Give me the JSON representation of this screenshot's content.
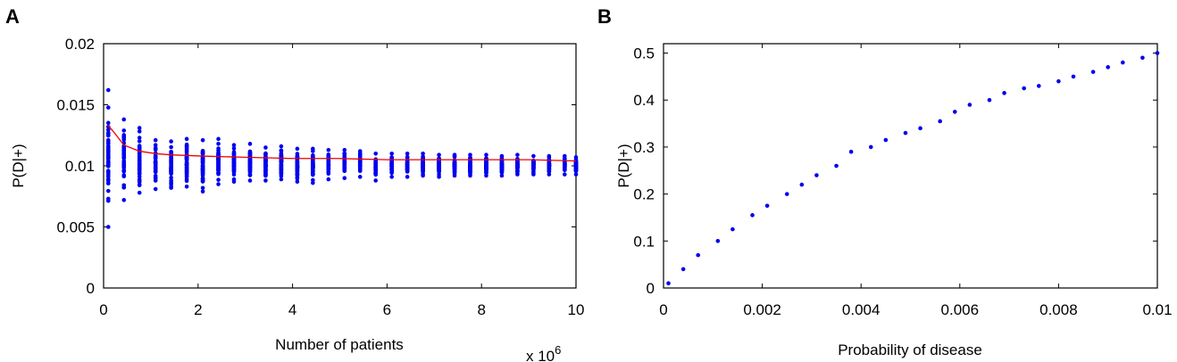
{
  "chart_data": [
    {
      "panel_label": "A",
      "type": "scatter",
      "xlabel": "Number of patients",
      "ylabel": "P(D|+)",
      "x_multiplier_label": "x 10",
      "x_multiplier_exponent": "6",
      "xlim": [
        0,
        10
      ],
      "ylim": [
        0,
        0.02
      ],
      "xticks": [
        0,
        2,
        4,
        6,
        8,
        10
      ],
      "xtick_labels": [
        "0",
        "2",
        "4",
        "6",
        "8",
        "10"
      ],
      "yticks": [
        0,
        0.005,
        0.01,
        0.015,
        0.02
      ],
      "ytick_labels": [
        "0",
        "0.005",
        "0.01",
        "0.015",
        "0.02"
      ],
      "grid": false,
      "point_color": "#0000ee",
      "line_color": "#ee0000",
      "clusters": [
        {
          "x": 0.1,
          "ymin": 0.005,
          "ymax": 0.0162
        },
        {
          "x": 0.43,
          "ymin": 0.0072,
          "ymax": 0.0138
        },
        {
          "x": 0.76,
          "ymin": 0.0078,
          "ymax": 0.0131
        },
        {
          "x": 1.1,
          "ymin": 0.0081,
          "ymax": 0.0121
        },
        {
          "x": 1.43,
          "ymin": 0.0082,
          "ymax": 0.012
        },
        {
          "x": 1.76,
          "ymin": 0.0083,
          "ymax": 0.0122
        },
        {
          "x": 2.1,
          "ymin": 0.0079,
          "ymax": 0.0121
        },
        {
          "x": 2.43,
          "ymin": 0.0085,
          "ymax": 0.0122
        },
        {
          "x": 2.76,
          "ymin": 0.0087,
          "ymax": 0.0117
        },
        {
          "x": 3.1,
          "ymin": 0.0088,
          "ymax": 0.0118
        },
        {
          "x": 3.43,
          "ymin": 0.0088,
          "ymax": 0.0115
        },
        {
          "x": 3.76,
          "ymin": 0.0089,
          "ymax": 0.0116
        },
        {
          "x": 4.1,
          "ymin": 0.0087,
          "ymax": 0.0114
        },
        {
          "x": 4.43,
          "ymin": 0.0086,
          "ymax": 0.0114
        },
        {
          "x": 4.76,
          "ymin": 0.0089,
          "ymax": 0.0113
        },
        {
          "x": 5.1,
          "ymin": 0.009,
          "ymax": 0.0113
        },
        {
          "x": 5.43,
          "ymin": 0.0091,
          "ymax": 0.0112
        },
        {
          "x": 5.76,
          "ymin": 0.0088,
          "ymax": 0.011
        },
        {
          "x": 6.1,
          "ymin": 0.0091,
          "ymax": 0.011
        },
        {
          "x": 6.43,
          "ymin": 0.0091,
          "ymax": 0.011
        },
        {
          "x": 6.76,
          "ymin": 0.0092,
          "ymax": 0.011
        },
        {
          "x": 7.1,
          "ymin": 0.0091,
          "ymax": 0.0109
        },
        {
          "x": 7.43,
          "ymin": 0.0092,
          "ymax": 0.0109
        },
        {
          "x": 7.76,
          "ymin": 0.0092,
          "ymax": 0.0109
        },
        {
          "x": 8.1,
          "ymin": 0.0092,
          "ymax": 0.0109
        },
        {
          "x": 8.43,
          "ymin": 0.0092,
          "ymax": 0.0108
        },
        {
          "x": 8.76,
          "ymin": 0.0093,
          "ymax": 0.0109
        },
        {
          "x": 9.1,
          "ymin": 0.0093,
          "ymax": 0.0108
        },
        {
          "x": 9.43,
          "ymin": 0.0093,
          "ymax": 0.0108
        },
        {
          "x": 9.76,
          "ymin": 0.0093,
          "ymax": 0.0108
        },
        {
          "x": 10.0,
          "ymin": 0.0093,
          "ymax": 0.0107
        }
      ],
      "mean_line": {
        "x": [
          0.1,
          0.25,
          0.43,
          0.76,
          1.1,
          1.43,
          2.1,
          3.0,
          4.0,
          5.0,
          6.0,
          7.0,
          8.0,
          9.0,
          10.0
        ],
        "y": [
          0.0133,
          0.0126,
          0.0117,
          0.0112,
          0.011,
          0.0109,
          0.0108,
          0.0107,
          0.0106,
          0.0106,
          0.0105,
          0.0105,
          0.0105,
          0.0105,
          0.0104
        ]
      }
    },
    {
      "panel_label": "B",
      "type": "scatter",
      "xlabel": "Probability of disease",
      "ylabel": "P(D|+)",
      "xlim": [
        0,
        0.01
      ],
      "ylim": [
        0,
        0.52
      ],
      "xticks": [
        0,
        0.002,
        0.004,
        0.006,
        0.008,
        0.01
      ],
      "xtick_labels": [
        "0",
        "0.002",
        "0.004",
        "0.006",
        "0.008",
        "0.01"
      ],
      "yticks": [
        0,
        0.1,
        0.2,
        0.3,
        0.4,
        0.5
      ],
      "ytick_labels": [
        "0",
        "0.1",
        "0.2",
        "0.3",
        "0.4",
        "0.5"
      ],
      "grid": false,
      "point_color": "#0000ee",
      "x": [
        0.0001,
        0.0004,
        0.0007,
        0.0011,
        0.0014,
        0.0018,
        0.0021,
        0.0025,
        0.0028,
        0.0031,
        0.0035,
        0.0038,
        0.0042,
        0.0045,
        0.0049,
        0.0052,
        0.0056,
        0.0059,
        0.0062,
        0.0066,
        0.0069,
        0.0073,
        0.0076,
        0.008,
        0.0083,
        0.0087,
        0.009,
        0.0093,
        0.0097,
        0.01
      ],
      "y": [
        0.01,
        0.04,
        0.07,
        0.1,
        0.125,
        0.155,
        0.175,
        0.2,
        0.22,
        0.24,
        0.26,
        0.29,
        0.3,
        0.315,
        0.33,
        0.34,
        0.355,
        0.375,
        0.39,
        0.4,
        0.415,
        0.425,
        0.43,
        0.44,
        0.45,
        0.46,
        0.47,
        0.48,
        0.49,
        0.5
      ]
    }
  ]
}
